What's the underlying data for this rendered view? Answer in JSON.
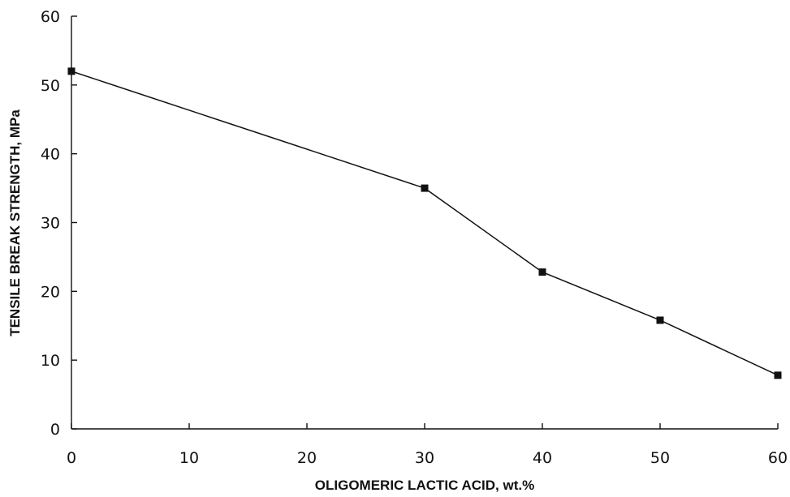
{
  "chart_data": {
    "type": "line",
    "title": "",
    "xlabel": "OLIGOMERIC LACTIC ACID, wt.%",
    "ylabel": "TENSILE BREAK STRENGTH, MPa",
    "xlim": [
      0,
      60
    ],
    "ylim": [
      0,
      60
    ],
    "x_ticks": [
      0,
      10,
      20,
      30,
      40,
      50,
      60
    ],
    "y_ticks": [
      0,
      10,
      20,
      30,
      40,
      50,
      60
    ],
    "x_tick_labels": [
      "0",
      "10",
      "20",
      "30",
      "40",
      "50",
      "60"
    ],
    "y_tick_labels": [
      "0",
      "10",
      "20",
      "30",
      "40",
      "50",
      "60"
    ],
    "grid": false,
    "marker": "square",
    "colors": {
      "line": "#111111",
      "marker": "#111111"
    },
    "series": [
      {
        "x": [
          0,
          30,
          40,
          50,
          60
        ],
        "y": [
          52,
          35,
          22.8,
          15.8,
          7.8
        ]
      }
    ]
  }
}
